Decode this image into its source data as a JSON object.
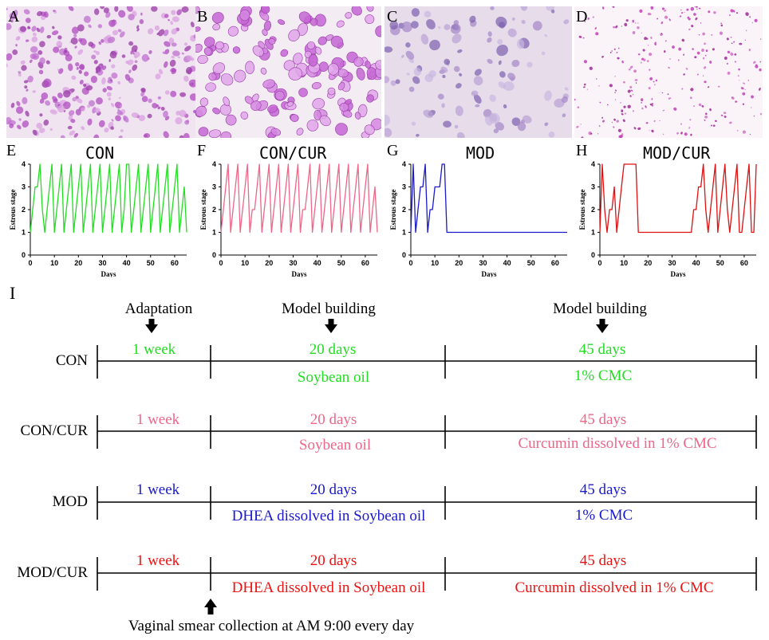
{
  "panels": {
    "micrographs": [
      {
        "letter": "A"
      },
      {
        "letter": "B"
      },
      {
        "letter": "C"
      },
      {
        "letter": "D"
      }
    ]
  },
  "charts": {
    "ylabel": "Estrous stage",
    "xlabel": "Days",
    "colors": {
      "CON": "#22dd22",
      "CON/CUR": "#ee6688",
      "MOD": "#1a1acc",
      "MOD/CUR": "#dd1111"
    }
  },
  "chart_data": [
    {
      "letter": "E",
      "title": "CON",
      "type": "line",
      "color": "#22dd22",
      "xlabel": "Days",
      "ylabel": "Estrous stage",
      "xlim": [
        0,
        65
      ],
      "ylim": [
        0,
        4
      ],
      "xticks": [
        0,
        10,
        20,
        30,
        40,
        50,
        60
      ],
      "yticks": [
        0,
        1,
        2,
        3,
        4
      ],
      "x": [
        0,
        1,
        2,
        3,
        4,
        5,
        6,
        7,
        8,
        9,
        10,
        11,
        12,
        13,
        14,
        15,
        16,
        17,
        18,
        19,
        20,
        21,
        22,
        23,
        24,
        25,
        26,
        27,
        28,
        29,
        30,
        31,
        32,
        33,
        34,
        35,
        36,
        37,
        38,
        39,
        40,
        41,
        42,
        43,
        44,
        45,
        46,
        47,
        48,
        49,
        50,
        51,
        52,
        53,
        54,
        55,
        56,
        57,
        58,
        59,
        60,
        61,
        62,
        63,
        64,
        65
      ],
      "y": [
        1,
        2,
        3,
        3,
        4,
        2,
        1,
        2,
        3,
        4,
        1,
        2,
        3,
        4,
        1,
        2,
        3,
        4,
        1,
        2,
        3,
        4,
        1,
        2,
        3,
        4,
        1,
        2,
        3,
        4,
        1,
        2,
        3,
        4,
        1,
        2,
        3,
        4,
        1,
        2,
        4,
        4,
        1,
        2,
        3,
        4,
        1,
        2,
        3,
        4,
        1,
        2,
        3,
        4,
        1,
        2,
        3,
        4,
        1,
        2,
        3,
        4,
        1,
        2,
        3,
        1
      ]
    },
    {
      "letter": "F",
      "title": "CON/CUR",
      "type": "line",
      "color": "#ee6688",
      "xlabel": "Days",
      "ylabel": "Estrous stage",
      "xlim": [
        0,
        65
      ],
      "ylim": [
        0,
        4
      ],
      "xticks": [
        0,
        10,
        20,
        30,
        40,
        50,
        60
      ],
      "yticks": [
        0,
        1,
        2,
        3,
        4
      ],
      "x": [
        0,
        1,
        2,
        3,
        4,
        5,
        6,
        7,
        8,
        9,
        10,
        11,
        12,
        13,
        14,
        15,
        16,
        17,
        18,
        19,
        20,
        21,
        22,
        23,
        24,
        25,
        26,
        27,
        28,
        29,
        30,
        31,
        32,
        33,
        34,
        35,
        36,
        37,
        38,
        39,
        40,
        41,
        42,
        43,
        44,
        45,
        46,
        47,
        48,
        49,
        50,
        51,
        52,
        53,
        54,
        55,
        56,
        57,
        58,
        59,
        60,
        61,
        62,
        63,
        64,
        65
      ],
      "y": [
        1,
        2,
        3,
        4,
        1,
        2,
        3,
        4,
        1,
        2,
        3,
        4,
        1,
        2,
        2,
        3,
        4,
        1,
        2,
        3,
        4,
        1,
        2,
        3,
        4,
        1,
        2,
        3,
        4,
        1,
        2,
        3,
        4,
        1,
        2,
        2,
        3,
        4,
        1,
        2,
        3,
        4,
        1,
        2,
        3,
        4,
        1,
        2,
        3,
        4,
        1,
        2,
        3,
        4,
        1,
        2,
        3,
        4,
        1,
        2,
        3,
        4,
        1,
        2,
        3,
        1
      ]
    },
    {
      "letter": "G",
      "title": "MOD",
      "type": "line",
      "color": "#1a1acc",
      "xlabel": "Days",
      "ylabel": "Estrous stage",
      "xlim": [
        0,
        65
      ],
      "ylim": [
        0,
        4
      ],
      "xticks": [
        0,
        10,
        20,
        30,
        40,
        50,
        60
      ],
      "yticks": [
        0,
        1,
        2,
        3,
        4
      ],
      "x": [
        0,
        1,
        2,
        3,
        4,
        5,
        6,
        7,
        8,
        9,
        10,
        11,
        12,
        13,
        14,
        15,
        65
      ],
      "y": [
        1,
        4,
        1,
        2,
        3,
        3,
        4,
        1,
        2,
        2,
        3,
        3,
        3,
        4,
        4,
        1,
        1
      ]
    },
    {
      "letter": "H",
      "title": "MOD/CUR",
      "type": "line",
      "color": "#dd1111",
      "xlabel": "Days",
      "ylabel": "Estrous stage",
      "xlim": [
        0,
        65
      ],
      "ylim": [
        0,
        4
      ],
      "xticks": [
        0,
        10,
        20,
        30,
        40,
        50,
        60
      ],
      "yticks": [
        0,
        1,
        2,
        3,
        4
      ],
      "x": [
        0,
        1,
        2,
        3,
        4,
        5,
        6,
        7,
        8,
        9,
        10,
        11,
        12,
        13,
        14,
        15,
        16,
        38,
        39,
        40,
        41,
        42,
        43,
        44,
        45,
        46,
        47,
        48,
        49,
        50,
        51,
        52,
        53,
        54,
        55,
        56,
        57,
        58,
        59,
        60,
        61,
        62,
        63,
        64,
        65
      ],
      "y": [
        1,
        4,
        2,
        1,
        2,
        2,
        3,
        1,
        2,
        3,
        4,
        4,
        4,
        4,
        4,
        4,
        1,
        1,
        2,
        2,
        3,
        3,
        4,
        2,
        1,
        2,
        3,
        4,
        1,
        2,
        3,
        4,
        2,
        1,
        2,
        3,
        4,
        1,
        1,
        2,
        3,
        4,
        1,
        1,
        4
      ]
    }
  ],
  "timeline": {
    "panel_letter": "I",
    "phases": {
      "adaptation": "Adaptation",
      "model_building_1": "Model building",
      "model_building_2": "Model building"
    },
    "rows": [
      {
        "name": "CON",
        "color": "#22dd22",
        "w1": "1 week",
        "d20": "20 days",
        "d45": "45 days",
        "t20": "Soybean oil",
        "t45": "1% CMC"
      },
      {
        "name": "CON/CUR",
        "color": "#ee6688",
        "w1": "1 week",
        "d20": "20 days",
        "d45": "45 days",
        "t20": "Soybean oil",
        "t45": "Curcumin dissolved in 1% CMC"
      },
      {
        "name": "MOD",
        "color": "#1a1acc",
        "w1": "1 week",
        "d20": "20 days",
        "d45": "45 days",
        "t20": "DHEA dissolved in Soybean oil",
        "t45": "1% CMC"
      },
      {
        "name": "MOD/CUR",
        "color": "#ee1111",
        "w1": "1 week",
        "d20": "20 days",
        "d45": "45 days",
        "t20": "DHEA dissolved in Soybean oil",
        "t45": "Curcumin dissolved in 1% CMC"
      }
    ],
    "footnote": "Vaginal smear collection at AM 9:00 every day"
  }
}
